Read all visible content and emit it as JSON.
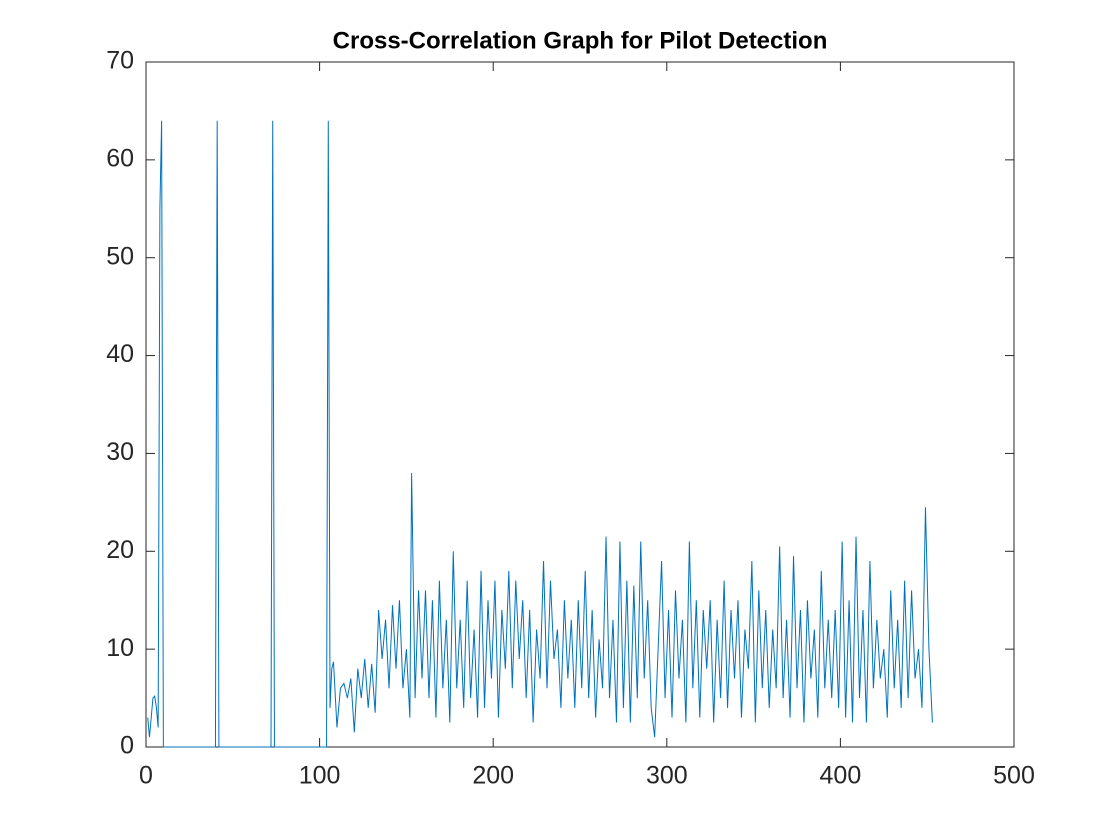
{
  "chart_data": {
    "type": "line",
    "title": "Cross-Correlation Graph for Pilot Detection",
    "x": [
      1,
      2,
      3,
      4,
      5,
      6,
      7,
      8,
      9,
      10,
      40,
      41,
      42,
      72,
      73,
      74,
      104,
      105,
      106,
      107,
      108,
      110,
      112,
      114,
      116,
      118,
      120,
      122,
      124,
      126,
      128,
      130,
      132,
      134,
      136,
      138,
      140,
      142,
      144,
      146,
      148,
      150,
      152,
      153,
      155,
      157,
      159,
      161,
      163,
      165,
      167,
      169,
      171,
      173,
      175,
      177,
      179,
      181,
      183,
      185,
      187,
      189,
      191,
      193,
      195,
      197,
      199,
      201,
      203,
      205,
      207,
      209,
      211,
      213,
      215,
      217,
      219,
      221,
      223,
      225,
      227,
      229,
      231,
      233,
      235,
      237,
      239,
      241,
      243,
      245,
      247,
      249,
      251,
      253,
      255,
      257,
      259,
      261,
      263,
      265,
      267,
      269,
      271,
      273,
      275,
      277,
      279,
      281,
      283,
      285,
      287,
      289,
      291,
      293,
      295,
      297,
      299,
      301,
      303,
      305,
      307,
      309,
      311,
      313,
      315,
      317,
      319,
      321,
      323,
      325,
      327,
      329,
      331,
      333,
      335,
      337,
      339,
      341,
      343,
      345,
      347,
      349,
      351,
      353,
      355,
      357,
      359,
      361,
      363,
      365,
      367,
      369,
      371,
      373,
      375,
      377,
      379,
      381,
      383,
      385,
      387,
      389,
      391,
      393,
      395,
      397,
      399,
      401,
      403,
      405,
      407,
      409,
      411,
      413,
      415,
      417,
      419,
      421,
      423,
      425,
      427,
      429,
      431,
      433,
      435,
      437,
      439,
      441,
      443,
      445,
      447,
      449,
      451,
      453
    ],
    "values": [
      3,
      1,
      3,
      5,
      5.2,
      4,
      2,
      55,
      64,
      0,
      0,
      64,
      0,
      0,
      64,
      0,
      0,
      64,
      4,
      8,
      8.7,
      2,
      6,
      6.5,
      5,
      7,
      1.5,
      8,
      5,
      9,
      4,
      8.5,
      3.5,
      14,
      9,
      13,
      6,
      14.5,
      8,
      15,
      6,
      10,
      3,
      28,
      5,
      16,
      7,
      16,
      5,
      15,
      3,
      17,
      6,
      13,
      2.5,
      20,
      6,
      13,
      4,
      17,
      5,
      12,
      3,
      18,
      4,
      15,
      7,
      17,
      3,
      14,
      8,
      18,
      6,
      17,
      9,
      15,
      5,
      14,
      2.5,
      12,
      7,
      19,
      6,
      17,
      9,
      12,
      4,
      15,
      7,
      13,
      4,
      15,
      6,
      18,
      5,
      14,
      3,
      11,
      6,
      21.5,
      5,
      13,
      2.5,
      21,
      4,
      17,
      2.5,
      16.5,
      5,
      21,
      7,
      15,
      4,
      1,
      10,
      19,
      5,
      14,
      3,
      16,
      7,
      13,
      2.5,
      21,
      6,
      15,
      3,
      14,
      8,
      15,
      2.5,
      13,
      5,
      17,
      4,
      14,
      7,
      15,
      3,
      12,
      8,
      19,
      2.5,
      16,
      6,
      14,
      4,
      12,
      6,
      20.5,
      5,
      13,
      3,
      19.5,
      6,
      14,
      2.5,
      15,
      7,
      12,
      3,
      18,
      6,
      13,
      5,
      14,
      4,
      21,
      3,
      15,
      2.5,
      21.5,
      5,
      14,
      2.5,
      19,
      6,
      13,
      7,
      10,
      3,
      16,
      6,
      13,
      4,
      17,
      5,
      16,
      7,
      10,
      4,
      24.5,
      10,
      2.5
    ],
    "color": "#0072bd",
    "xlim": [
      0,
      500
    ],
    "xticks": [
      0,
      100,
      200,
      300,
      400,
      500
    ],
    "ylim": [
      0,
      70
    ],
    "yticks": [
      0,
      10,
      20,
      30,
      40,
      50,
      60,
      70
    ]
  }
}
